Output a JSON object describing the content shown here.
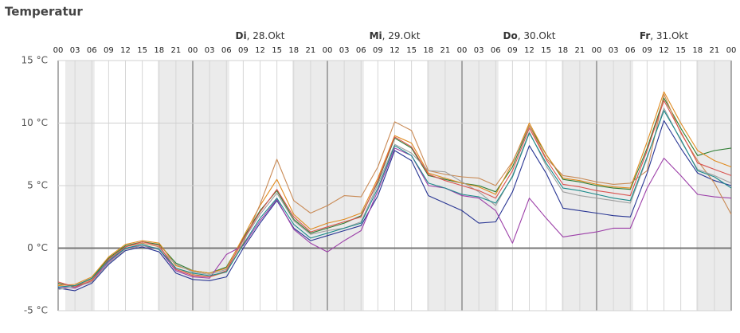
{
  "chart_data": {
    "type": "line",
    "title": "Temperatur",
    "days": [
      {
        "weekday": "Di",
        "date": ", 28.Okt"
      },
      {
        "weekday": "Mi",
        "date": ", 29.Okt"
      },
      {
        "weekday": "Do",
        "date": ", 30.Okt"
      },
      {
        "weekday": "Fr",
        "date": ", 31.Okt"
      }
    ],
    "categories": [
      "00",
      "03",
      "06",
      "09",
      "12",
      "15",
      "18",
      "21",
      "00",
      "03",
      "06",
      "09",
      "12",
      "15",
      "18",
      "21",
      "00",
      "03",
      "06",
      "09",
      "12",
      "15",
      "18",
      "21",
      "00",
      "03",
      "06",
      "09",
      "12",
      "15",
      "18",
      "21",
      "00",
      "03",
      "06",
      "09",
      "12",
      "15",
      "18",
      "21",
      "00"
    ],
    "ylim": [
      -5,
      15
    ],
    "yticks": [
      {
        "value": -5,
        "label": "-5 °C"
      },
      {
        "value": 0,
        "label": "0 °C"
      },
      {
        "value": 5,
        "label": "5 °C"
      },
      {
        "value": 10,
        "label": "10 °C"
      },
      {
        "value": 15,
        "label": "15 °C"
      }
    ],
    "grid": true,
    "series": [
      {
        "color": "#2e7d32",
        "values": [
          -2.8,
          -3.1,
          -2.4,
          -0.8,
          0.2,
          0.5,
          0.3,
          -1.2,
          -1.8,
          -2,
          -1.5,
          0.8,
          3,
          4.6,
          2.3,
          1.2,
          1.6,
          2,
          2.6,
          5.3,
          8.8,
          8,
          5.8,
          5.5,
          5.2,
          5,
          4.5,
          6.5,
          9.8,
          7.5,
          5.5,
          5.3,
          5,
          4.8,
          4.7,
          8,
          12,
          9.6,
          7.4,
          7.8,
          8
        ]
      },
      {
        "color": "#283593",
        "values": [
          -3.2,
          -3.4,
          -2.8,
          -1.3,
          -0.2,
          0.1,
          -0.3,
          -2,
          -2.5,
          -2.6,
          -2.3,
          0,
          2,
          3.8,
          1.6,
          0.6,
          1,
          1.4,
          1.8,
          4.2,
          7.8,
          7,
          4.2,
          3.6,
          3,
          2,
          2.1,
          4.5,
          8.2,
          6,
          3.2,
          3,
          2.8,
          2.6,
          2.5,
          6,
          10.2,
          8,
          6,
          5.4,
          5
        ]
      },
      {
        "color": "#e08a1e",
        "values": [
          -3,
          -2.9,
          -2.3,
          -0.7,
          0.3,
          0.6,
          0.4,
          -1.4,
          -1.8,
          -2,
          -1.6,
          0.9,
          3.4,
          5.5,
          2.7,
          1.5,
          2,
          2.3,
          2.8,
          5.6,
          9,
          8.4,
          6,
          5.6,
          5.2,
          4.9,
          4.3,
          6.8,
          10,
          7.5,
          5.6,
          5.4,
          5.1,
          4.9,
          4.8,
          8.5,
          12.5,
          10,
          7.8,
          7,
          6.5
        ]
      },
      {
        "color": "#9c3fa8",
        "values": [
          -3.1,
          -3.2,
          -2.6,
          -1.1,
          0,
          0.2,
          -0.1,
          -1.8,
          -2.3,
          -2.4,
          -0.5,
          0.2,
          2.2,
          3.9,
          1.5,
          0.4,
          -0.3,
          0.6,
          1.4,
          4.6,
          8,
          7.4,
          5,
          4.8,
          4.2,
          4,
          3,
          0.4,
          4,
          2.4,
          0.9,
          1.1,
          1.3,
          1.6,
          1.6,
          4.8,
          7.2,
          5.8,
          4.3,
          4.1,
          4
        ]
      },
      {
        "color": "#c98a55",
        "values": [
          -2.9,
          -3,
          -2.5,
          -0.9,
          0.1,
          0.4,
          0.1,
          -1.6,
          -2.1,
          -2.3,
          -1.9,
          0.4,
          3.5,
          7.1,
          3.8,
          2.8,
          3.4,
          4.2,
          4.1,
          6.5,
          10.1,
          9.4,
          6.2,
          5.9,
          5.7,
          5.6,
          5,
          6.9,
          9.8,
          7.2,
          5.8,
          5.6,
          5.3,
          5.1,
          5.2,
          6.2,
          12.3,
          9.2,
          7,
          5.2,
          2.7
        ]
      },
      {
        "color": "#9e9e9e",
        "values": [
          -3.3,
          -3.1,
          -2.7,
          -1.2,
          -0.1,
          0.2,
          0,
          -1.3,
          -1.9,
          -2.1,
          -1.7,
          0.6,
          2.7,
          4.4,
          2.2,
          1.1,
          1.4,
          1.6,
          2.1,
          5.1,
          8.3,
          7.6,
          6.2,
          6.1,
          5.3,
          4.5,
          3.4,
          5.8,
          9.3,
          6.6,
          4.5,
          4.2,
          4,
          3.8,
          3.6,
          7.2,
          11.2,
          8.6,
          6.3,
          5.8,
          5.2
        ]
      },
      {
        "color": "#d9534f",
        "values": [
          -2.7,
          -3.1,
          -2.6,
          -0.9,
          0.1,
          0.5,
          0.2,
          -1.7,
          -2.2,
          -2.3,
          -1.8,
          0.7,
          2.9,
          4.7,
          2.5,
          1.3,
          1.7,
          2.1,
          2.5,
          5.4,
          8.9,
          8.1,
          5.9,
          5.4,
          5,
          4.6,
          4,
          6.2,
          9.6,
          7.1,
          5.1,
          4.9,
          4.6,
          4.4,
          4.2,
          7.8,
          11.8,
          9.3,
          6.8,
          6.3,
          5.8
        ]
      },
      {
        "color": "#1b8a8a",
        "values": [
          -3.1,
          -3,
          -2.4,
          -1,
          0,
          0.3,
          -0.1,
          -1.6,
          -2,
          -2.2,
          -1.9,
          0.3,
          2.4,
          4,
          1.9,
          0.8,
          1.2,
          1.6,
          2,
          4.8,
          8.2,
          7.4,
          5.2,
          4.8,
          4.3,
          4.1,
          3.6,
          5.7,
          9.2,
          6.8,
          4.8,
          4.6,
          4.3,
          4,
          3.8,
          7.3,
          11,
          8.7,
          6.2,
          5.7,
          4.8
        ]
      }
    ]
  }
}
